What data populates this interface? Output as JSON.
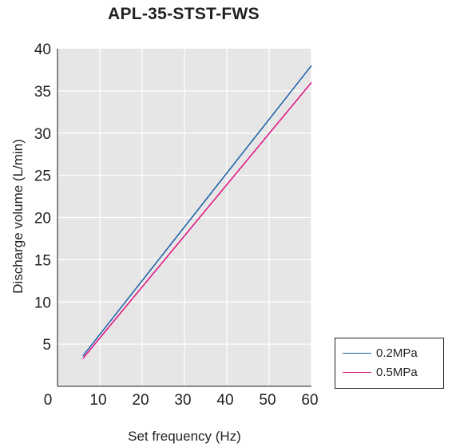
{
  "chart_data": {
    "type": "line",
    "title": "APL-35-STST-FWS",
    "xlabel": "Set frequency (Hz)",
    "ylabel": "Discharge volume (L/min)",
    "xlim": [
      0,
      60
    ],
    "ylim": [
      0,
      40
    ],
    "xticks": [
      0,
      10,
      20,
      30,
      40,
      50,
      60
    ],
    "yticks": [
      5,
      10,
      15,
      20,
      25,
      30,
      35,
      40
    ],
    "grid": true,
    "legend_position": "bottom-right, outside plot",
    "series": [
      {
        "name": "0.2MPa",
        "color": "#1a5fa8",
        "x": [
          6,
          60
        ],
        "y": [
          3.6,
          38.0
        ]
      },
      {
        "name": "0.5MPa",
        "color": "#e0107f",
        "x": [
          6,
          60
        ],
        "y": [
          3.3,
          36.0
        ]
      }
    ]
  },
  "style": {
    "plot_bg": "#e6e6e6",
    "grid_color": "#ffffff",
    "axis_color": "#231f20"
  }
}
